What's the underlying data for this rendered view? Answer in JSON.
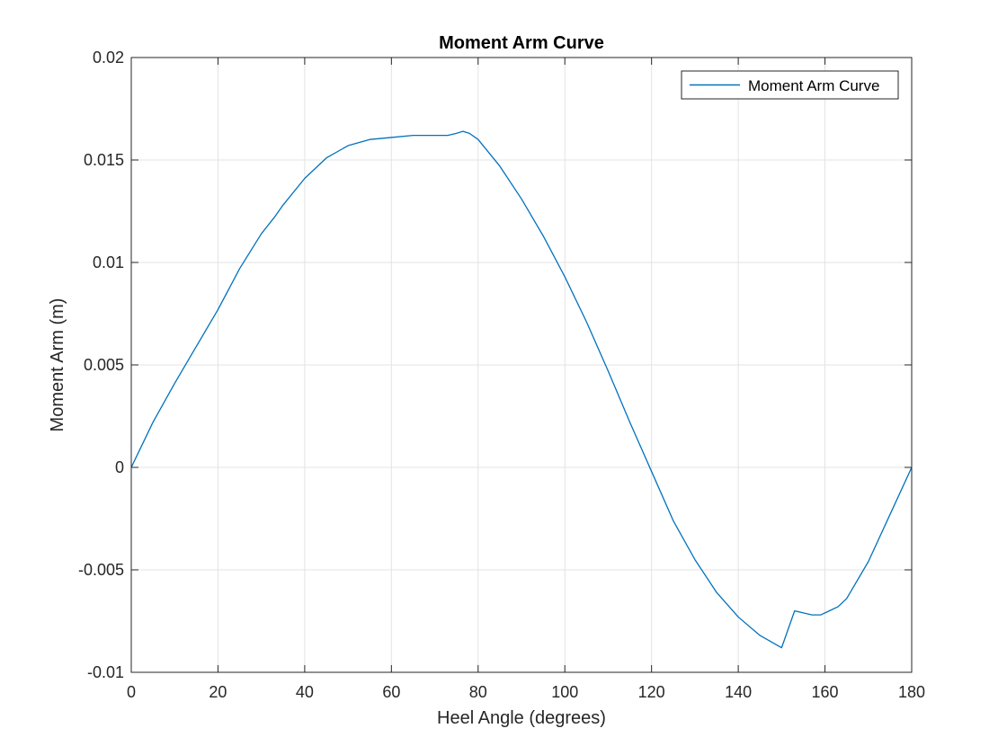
{
  "chart_data": {
    "type": "line",
    "title": "Moment Arm Curve",
    "xlabel": "Heel Angle (degrees)",
    "ylabel": "Moment Arm (m)",
    "xlim": [
      0,
      180
    ],
    "ylim": [
      -0.01,
      0.02
    ],
    "xticks": [
      0,
      20,
      40,
      60,
      80,
      100,
      120,
      140,
      160,
      180
    ],
    "xtick_labels": [
      "0",
      "20",
      "40",
      "60",
      "80",
      "100",
      "120",
      "140",
      "160",
      "180"
    ],
    "yticks": [
      -0.01,
      -0.005,
      0,
      0.005,
      0.01,
      0.015,
      0.02
    ],
    "ytick_labels": [
      "-0.01",
      "-0.005",
      "0",
      "0.005",
      "0.01",
      "0.015",
      "0.02"
    ],
    "grid": true,
    "legend": {
      "position": "top-right",
      "entries": [
        "Moment Arm Curve"
      ]
    },
    "series": [
      {
        "name": "Moment Arm Curve",
        "color": "#0072BD",
        "x": [
          0,
          5,
          10,
          15,
          20,
          25,
          30,
          33,
          35,
          40,
          45,
          50,
          55,
          60,
          65,
          70,
          73,
          75,
          76.5,
          78,
          80,
          85,
          90,
          95,
          100,
          105,
          110,
          115,
          120,
          125,
          130,
          135,
          140,
          145,
          150,
          153,
          155,
          157,
          159,
          161,
          163,
          165,
          170,
          175,
          180
        ],
        "y": [
          0,
          0.0022,
          0.0041,
          0.0059,
          0.0077,
          0.0097,
          0.0114,
          0.0122,
          0.0128,
          0.0141,
          0.0151,
          0.0157,
          0.016,
          0.0161,
          0.0162,
          0.0162,
          0.0162,
          0.0163,
          0.0164,
          0.0163,
          0.016,
          0.0147,
          0.0131,
          0.0113,
          0.0093,
          0.0071,
          0.0047,
          0.0022,
          -0.0002,
          -0.0026,
          -0.0045,
          -0.0061,
          -0.0073,
          -0.0082,
          -0.0088,
          -0.007,
          -0.0071,
          -0.0072,
          -0.0072,
          -0.007,
          -0.0068,
          -0.0064,
          -0.0046,
          -0.0023,
          0
        ]
      }
    ]
  }
}
